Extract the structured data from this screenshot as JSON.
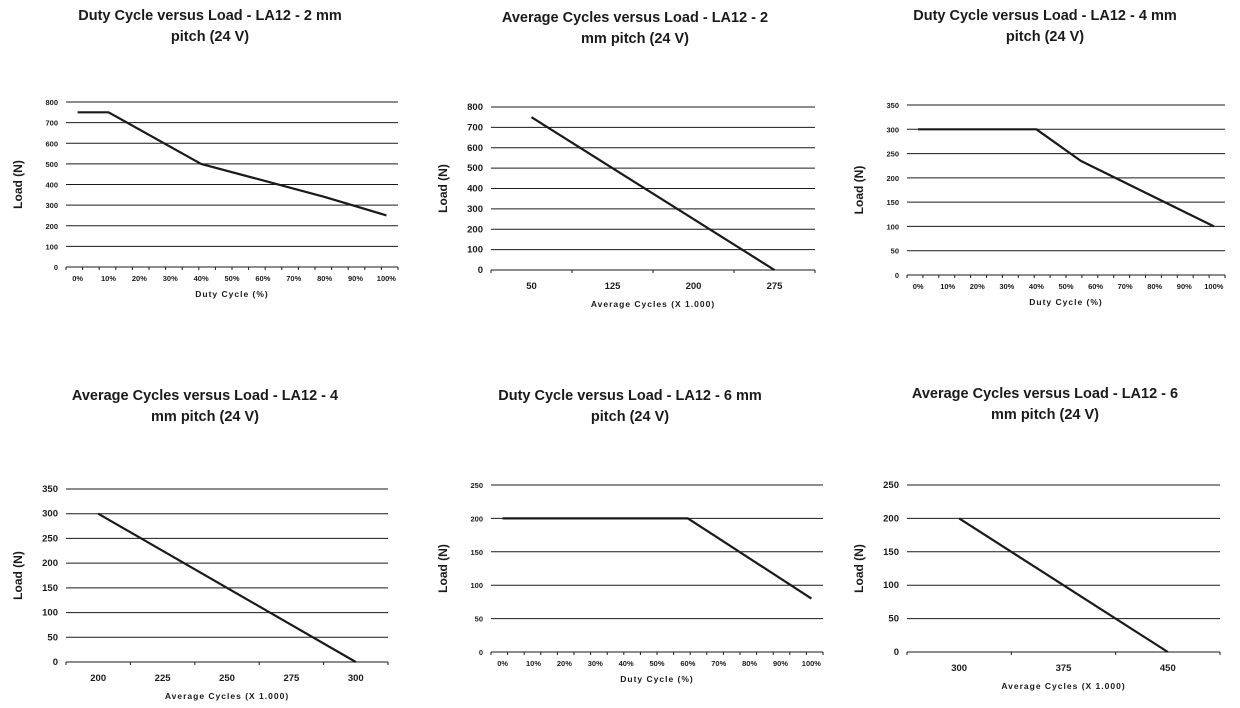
{
  "charts": [
    {
      "title_lines": [
        "Duty Cycle versus Load - LA12 - 2 mm",
        "pitch (24 V)"
      ],
      "xlabel": "Duty Cycle (%)",
      "ylabel": "Load (N)",
      "x_ticks": [
        "0%",
        "10%",
        "20%",
        "30%",
        "40%",
        "50%",
        "60%",
        "70%",
        "80%",
        "90%",
        "100%"
      ],
      "y_ticks": [
        "0",
        "100",
        "200",
        "300",
        "400",
        "500",
        "600",
        "700",
        "800"
      ]
    },
    {
      "title_lines": [
        "Average Cycles versus Load - LA12 - 2",
        "mm pitch (24 V)"
      ],
      "xlabel": "Average Cycles (X 1.000)",
      "ylabel": "Load (N)",
      "x_ticks": [
        "50",
        "125",
        "200",
        "275"
      ],
      "y_ticks": [
        "0",
        "100",
        "200",
        "300",
        "400",
        "500",
        "600",
        "700",
        "800"
      ]
    },
    {
      "title_lines": [
        "Duty Cycle versus Load - LA12 - 4 mm",
        "pitch (24 V)"
      ],
      "xlabel": "Duty Cycle (%)",
      "ylabel": "Load (N)",
      "x_ticks": [
        "0%",
        "10%",
        "20%",
        "30%",
        "40%",
        "50%",
        "60%",
        "70%",
        "80%",
        "90%",
        "100%"
      ],
      "y_ticks": [
        "0",
        "50",
        "100",
        "150",
        "200",
        "250",
        "300",
        "350"
      ]
    },
    {
      "title_lines": [
        "Average Cycles versus Load - LA12 - 4",
        "mm pitch (24 V)"
      ],
      "xlabel": "Average Cycles (X 1.000)",
      "ylabel": "Load (N)",
      "x_ticks": [
        "200",
        "225",
        "250",
        "275",
        "300"
      ],
      "y_ticks": [
        "0",
        "50",
        "100",
        "150",
        "200",
        "250",
        "300",
        "350"
      ]
    },
    {
      "title_lines": [
        "Duty Cycle versus Load - LA12 - 6 mm",
        "pitch (24 V)"
      ],
      "xlabel": "Duty Cycle (%)",
      "ylabel": "Load (N)",
      "x_ticks": [
        "0%",
        "10%",
        "20%",
        "30%",
        "40%",
        "50%",
        "60%",
        "70%",
        "80%",
        "90%",
        "100%"
      ],
      "y_ticks": [
        "0",
        "50",
        "100",
        "150",
        "200",
        "250"
      ]
    },
    {
      "title_lines": [
        "Average Cycles versus Load - LA12 - 6",
        "mm pitch (24 V)"
      ],
      "xlabel": "Average Cycles (X 1.000)",
      "ylabel": "Load (N)",
      "x_ticks": [
        "300",
        "375",
        "450"
      ],
      "y_ticks": [
        "0",
        "50",
        "100",
        "150",
        "200",
        "250"
      ]
    }
  ],
  "chart_data": [
    {
      "type": "line",
      "title": "Duty Cycle versus Load - LA12 - 2 mm pitch (24 V)",
      "xlabel": "Duty Cycle (%)",
      "ylabel": "Load (N)",
      "categories": [
        "0%",
        "10%",
        "20%",
        "30%",
        "40%",
        "50%",
        "60%",
        "70%",
        "80%",
        "90%",
        "100%"
      ],
      "x": [
        0,
        10,
        40,
        80,
        100
      ],
      "values": [
        750,
        750,
        500,
        340,
        250
      ],
      "xlim": [
        0,
        100
      ],
      "ylim": [
        0,
        800
      ],
      "grid": "horizontal",
      "color": "#1a1a1a"
    },
    {
      "type": "line",
      "title": "Average Cycles versus Load - LA12 - 2 mm pitch (24 V)",
      "xlabel": "Average Cycles (X 1.000)",
      "ylabel": "Load (N)",
      "categories": [
        "50",
        "125",
        "200",
        "275"
      ],
      "x": [
        50,
        275
      ],
      "values": [
        750,
        0
      ],
      "xlim": [
        50,
        275
      ],
      "ylim": [
        0,
        800
      ],
      "grid": "horizontal",
      "color": "#1a1a1a"
    },
    {
      "type": "line",
      "title": "Duty Cycle versus Load - LA12 - 4 mm pitch (24 V)",
      "xlabel": "Duty Cycle (%)",
      "ylabel": "Load (N)",
      "categories": [
        "0%",
        "10%",
        "20%",
        "30%",
        "40%",
        "50%",
        "60%",
        "70%",
        "80%",
        "90%",
        "100%"
      ],
      "x": [
        0,
        40,
        55,
        100
      ],
      "values": [
        300,
        300,
        235,
        100
      ],
      "xlim": [
        0,
        100
      ],
      "ylim": [
        0,
        350
      ],
      "grid": "horizontal",
      "color": "#1a1a1a"
    },
    {
      "type": "line",
      "title": "Average Cycles versus Load - LA12 - 4 mm pitch (24 V)",
      "xlabel": "Average Cycles (X 1.000)",
      "ylabel": "Load (N)",
      "categories": [
        "200",
        "225",
        "250",
        "275",
        "300"
      ],
      "x": [
        200,
        300
      ],
      "values": [
        300,
        0
      ],
      "xlim": [
        200,
        300
      ],
      "ylim": [
        0,
        350
      ],
      "grid": "horizontal",
      "color": "#1a1a1a"
    },
    {
      "type": "line",
      "title": "Duty Cycle versus Load - LA12 - 6 mm pitch (24 V)",
      "xlabel": "Duty Cycle (%)",
      "ylabel": "Load (N)",
      "categories": [
        "0%",
        "10%",
        "20%",
        "30%",
        "40%",
        "50%",
        "60%",
        "70%",
        "80%",
        "90%",
        "100%"
      ],
      "x": [
        0,
        60,
        70,
        100
      ],
      "values": [
        200,
        200,
        170,
        80
      ],
      "xlim": [
        0,
        100
      ],
      "ylim": [
        0,
        250
      ],
      "grid": "horizontal",
      "color": "#1a1a1a"
    },
    {
      "type": "line",
      "title": "Average Cycles versus Load - LA12 - 6 mm pitch (24 V)",
      "xlabel": "Average Cycles (X 1.000)",
      "ylabel": "Load (N)",
      "categories": [
        "300",
        "375",
        "450"
      ],
      "x": [
        300,
        450
      ],
      "values": [
        200,
        0
      ],
      "xlim": [
        300,
        450
      ],
      "ylim": [
        0,
        250
      ],
      "grid": "horizontal",
      "color": "#1a1a1a"
    }
  ]
}
